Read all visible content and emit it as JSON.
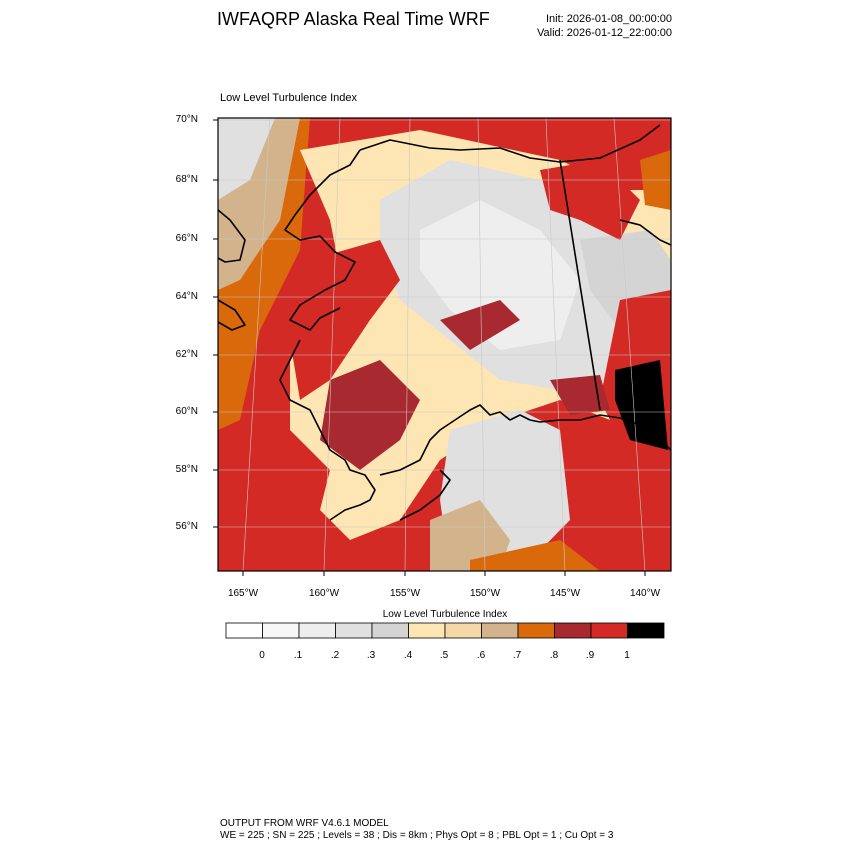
{
  "header": {
    "title": "IWFAQRP Alaska Real Time WRF",
    "init": "Init: 2026-01-08_00:00:00",
    "valid": "Valid: 2026-01-12_22:00:00"
  },
  "plot": {
    "title": "Low Level Turbulence Index"
  },
  "map": {
    "lat_labels": [
      "70°N",
      "68°N",
      "66°N",
      "64°N",
      "62°N",
      "60°N",
      "58°N",
      "56°N"
    ],
    "lon_labels": [
      "165°W",
      "160°W",
      "155°W",
      "150°W",
      "145°W",
      "140°W"
    ],
    "extent": {
      "lon_min": -166.5,
      "lon_max": -138.5,
      "lat_min": 54.5,
      "lat_max": 70.0
    }
  },
  "colorbar": {
    "title": "Low Level Turbulence Index",
    "labels": [
      "0",
      ".1",
      ".2",
      ".3",
      ".4",
      ".5",
      ".6",
      ".7",
      ".8",
      ".9",
      "1"
    ],
    "colors": [
      "#ffffff",
      "#f7f7f7",
      "#eeeeee",
      "#e0e0e0",
      "#d4d4d4",
      "#fde6b4",
      "#f4d8a8",
      "#d3b38b",
      "#d9690b",
      "#a8292f",
      "#d42a26",
      "#000000"
    ]
  },
  "footer": {
    "line1": "OUTPUT FROM WRF V4.6.1 MODEL",
    "line2": "WE = 225 ; SN = 225 ; Levels = 38 ; Dis = 8km ; Phys Opt = 8 ; PBL Opt = 1 ; Cu Opt = 3"
  }
}
